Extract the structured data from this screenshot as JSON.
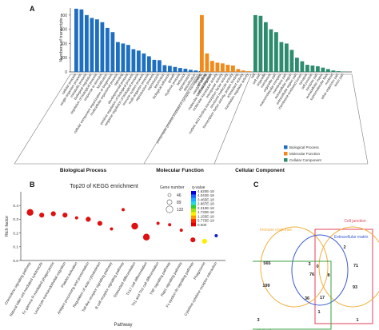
{
  "figure": {
    "panel_letters": {
      "a": "A",
      "b": "B",
      "c": "C"
    }
  },
  "chart_data": [
    {
      "type": "bar",
      "panel": "A",
      "ylabel": "Numbers of transcripts",
      "ylim": [
        0,
        900
      ],
      "yticks": [
        0,
        200,
        400,
        600,
        800
      ],
      "grid": false,
      "legend_position": "right",
      "groups": [
        {
          "name": "Biological Process",
          "color": "#1f6fc0",
          "categories": [
            "cellular process",
            "single-organism process",
            "metabolic process",
            "biological regulation",
            "regulation of biological process",
            "response to stimulus",
            "localization",
            "cellular component organization or biogenesis",
            "multicellular organismal process",
            "signaling",
            "developmental process",
            "positive regulation of biological process",
            "negative regulation of biological process",
            "immune system process",
            "multi-organism process",
            "reproductive process",
            "reproduction",
            "locomotion",
            "biological adhesion",
            "growth",
            "rhythmic process",
            "behavior",
            "pigmentation",
            "detoxification",
            "presynaptic process involved in synaptic transmission",
            "cell killing",
            "cell aggregation"
          ],
          "values": [
            890,
            880,
            800,
            760,
            740,
            700,
            620,
            560,
            420,
            400,
            380,
            320,
            300,
            260,
            220,
            170,
            165,
            95,
            85,
            70,
            55,
            45,
            30,
            20,
            12,
            8,
            5
          ]
        },
        {
          "name": "Molecular Function",
          "color": "#f28a1a",
          "categories": [
            "binding",
            "catalytic activity",
            "molecular function regulator",
            "molecular transducer activity",
            "transporter activity",
            "nucleic acid binding transcription factor activity",
            "structural molecule activity",
            "transcription factor activity, protein binding",
            "antioxidant activity",
            "translation regulator activity"
          ],
          "values": [
            800,
            260,
            155,
            130,
            120,
            100,
            90,
            40,
            20,
            10
          ]
        },
        {
          "name": "Cellular Component",
          "color": "#2e8c6e",
          "categories": [
            "cell",
            "cell part",
            "organelle",
            "membrane",
            "organelle part",
            "macromolecular complex",
            "membrane part",
            "extracellular region",
            "extracellular region part",
            "membrane-enclosed lumen",
            "synapse",
            "cell junction",
            "synapse part",
            "extracellular matrix",
            "supramolecular fiber",
            "nucleoid",
            "other organism part",
            "virion part"
          ],
          "values": [
            800,
            790,
            700,
            600,
            560,
            420,
            400,
            310,
            200,
            150,
            100,
            90,
            80,
            60,
            40,
            20,
            10,
            5
          ]
        }
      ],
      "group_labels": [
        "Biological Process",
        "Molecular Function",
        "Cellular Component"
      ],
      "legend": [
        "Biological Process",
        "Molecular Function",
        "Cellular Component"
      ]
    },
    {
      "type": "scatter",
      "panel": "B",
      "title": "Top20 of KEGG enrichment",
      "xlabel": "Pathway",
      "ylabel": "Rich factor",
      "ylim": [
        0,
        0.5
      ],
      "yticks": [
        0.0,
        0.1,
        0.2,
        0.3,
        0.4
      ],
      "grid": false,
      "legend_position": "right",
      "size_legend": {
        "title": "Gene number",
        "values": [
          46,
          89,
          132
        ]
      },
      "color_legend": {
        "title": "q-value",
        "labels": [
          "4.620E-18",
          "4.042E-18",
          "3.465E-18",
          "2.887E-18",
          "2.310E-18",
          "1.732E-18",
          "1.155E-18",
          "5.775E-19",
          "0.000"
        ]
      },
      "categories": [
        "Chemokine signaling pathway",
        "Natural killer cell mediated cytotoxicity",
        "Fc gamma R-mediated phagocytosis",
        "Leukocyte transendothelial migration",
        "Platelet activation",
        "Antigen processing and presentation",
        "Regulation of actin cytoskeleton",
        "Toll-like receptor signaling pathway",
        "B cell receptor signaling pathway",
        "Osteoclast differentiation",
        "Th17 cell differentiation",
        "Th1 and Th2 cell differentiation",
        "TNF signaling pathway",
        "Rap1 signaling pathway",
        "Fc epsilon RI signaling pathway",
        "Phagosome",
        "Cytokine-cytokine receptor interaction"
      ],
      "values": [
        0.35,
        0.33,
        0.34,
        0.33,
        0.31,
        0.3,
        0.27,
        0.23,
        0.37,
        0.25,
        0.17,
        0.27,
        0.26,
        0.22,
        0.15,
        0.14,
        0.18
      ],
      "sizes": [
        132,
        89,
        89,
        89,
        46,
        89,
        89,
        46,
        46,
        132,
        132,
        46,
        46,
        46,
        89,
        89,
        46
      ],
      "colors": [
        "#dd1111",
        "#dd1111",
        "#dd1111",
        "#dd1111",
        "#dd1111",
        "#dd1111",
        "#dd1111",
        "#dd1111",
        "#dd1111",
        "#dd1111",
        "#dd1111",
        "#dd1111",
        "#dd1111",
        "#dd1111",
        "#dd1111",
        "#ffee00",
        "#1122cc"
      ]
    },
    {
      "type": "diagram",
      "panel": "C",
      "venn": {
        "sets": [
          {
            "name": "Cell junction",
            "color": "#e0405a"
          },
          {
            "name": "Immune response",
            "color": "#f0b040"
          },
          {
            "name": "Extracellular matrix",
            "color": "#3a5ad0"
          },
          {
            "name": "Cell adhesion",
            "color": "#3aa040"
          }
        ],
        "region_counts": [
          "2",
          "565",
          "3",
          "0",
          "71",
          "76",
          "8",
          "199",
          "36",
          "17",
          "93",
          "1",
          "3",
          "1"
        ]
      }
    }
  ]
}
